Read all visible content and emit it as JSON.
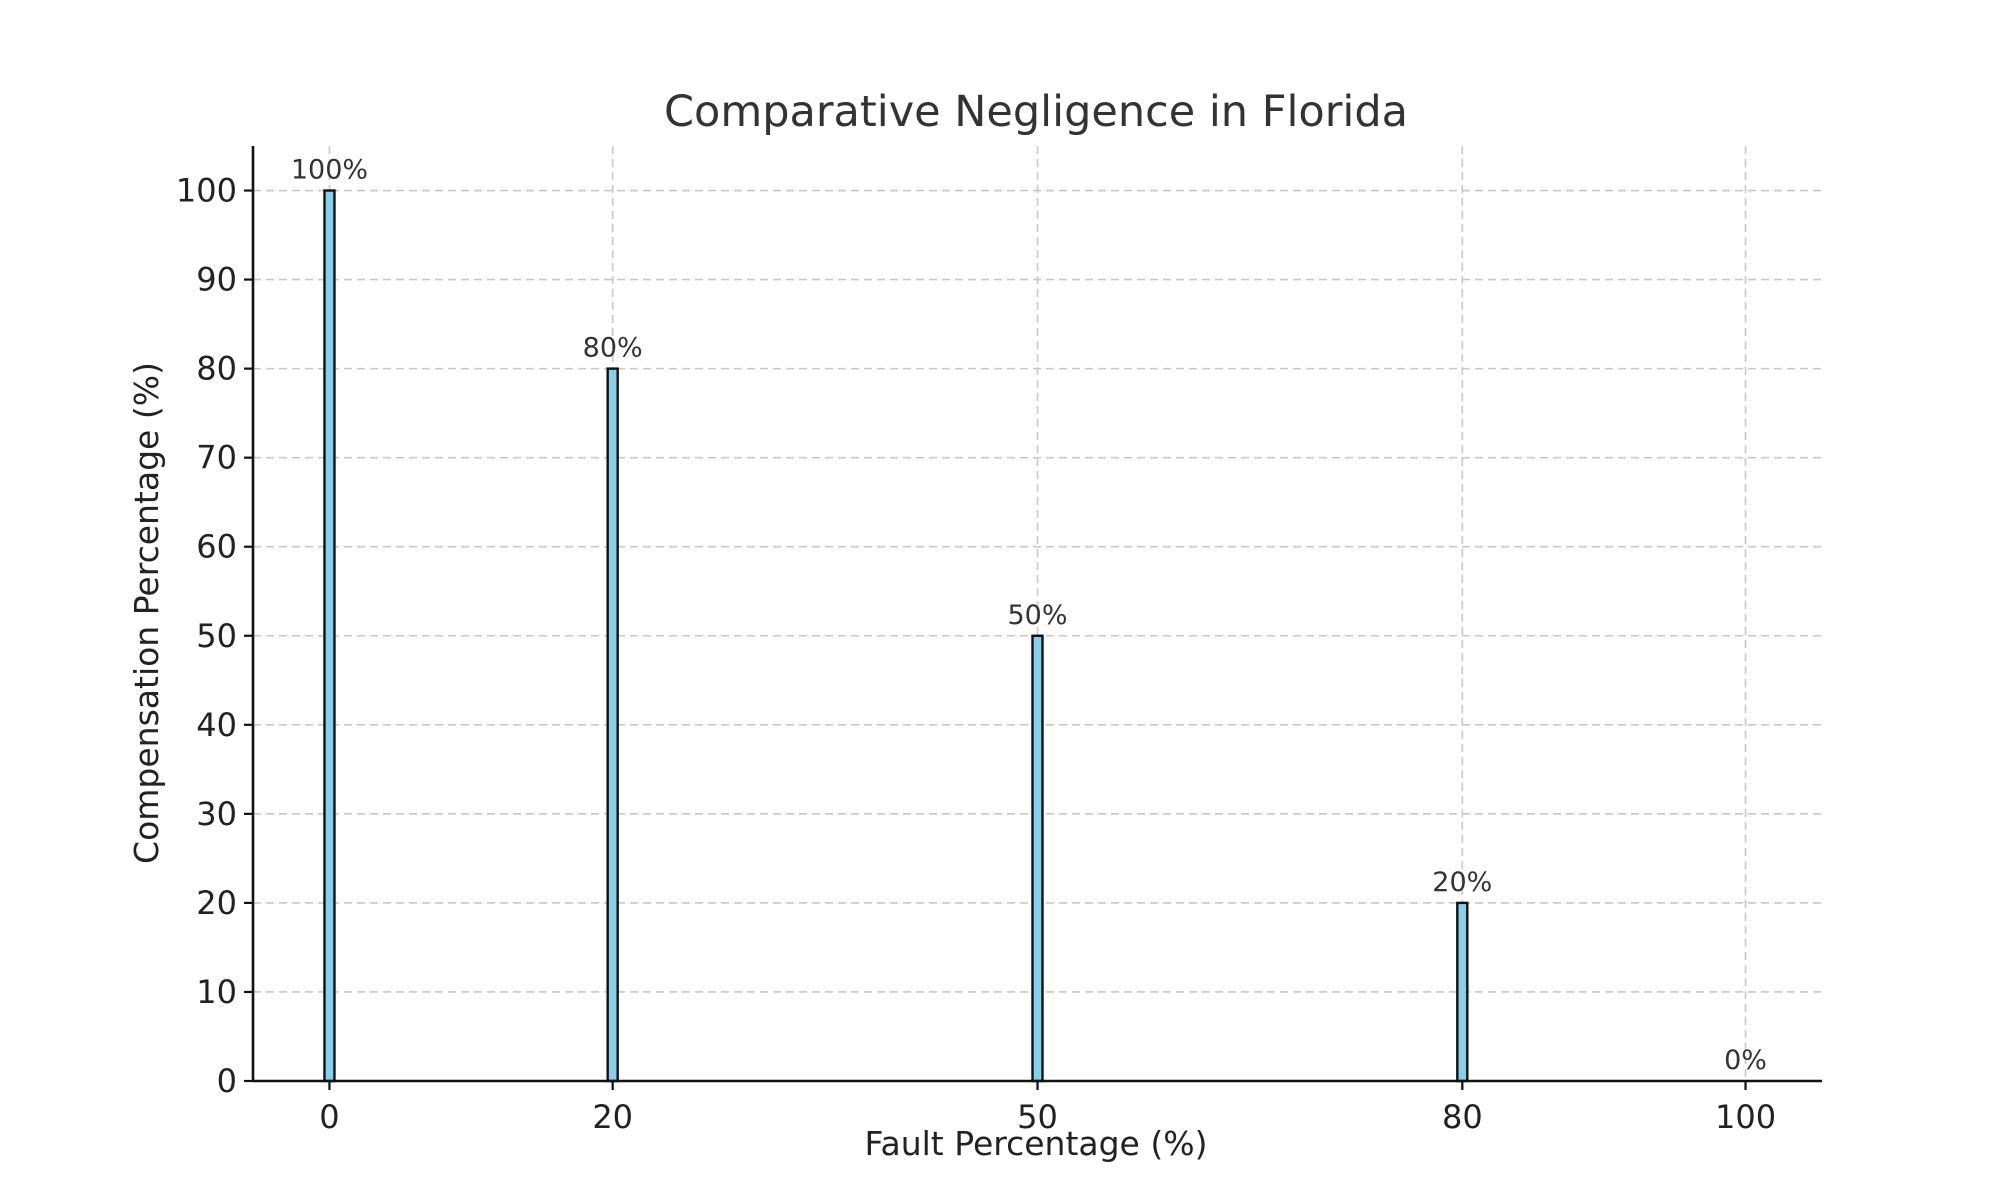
{
  "chart_data": {
    "type": "bar",
    "title": "Comparative Negligence in Florida",
    "xlabel": "Fault Percentage (%)",
    "ylabel": "Compensation Percentage (%)",
    "x": [
      0,
      20,
      50,
      80,
      100
    ],
    "values": [
      100,
      80,
      50,
      20,
      0
    ],
    "data_labels": [
      "100%",
      "80%",
      "50%",
      "20%",
      "0%"
    ],
    "x_ticks": [
      0,
      20,
      50,
      80,
      100
    ],
    "y_ticks": [
      0,
      10,
      20,
      30,
      40,
      50,
      60,
      70,
      80,
      90,
      100
    ],
    "xlim": [
      -5.4,
      105.4
    ],
    "ylim": [
      0,
      105
    ],
    "grid": true,
    "bar_color": "#87CEEB",
    "edge_color": "#111111"
  }
}
